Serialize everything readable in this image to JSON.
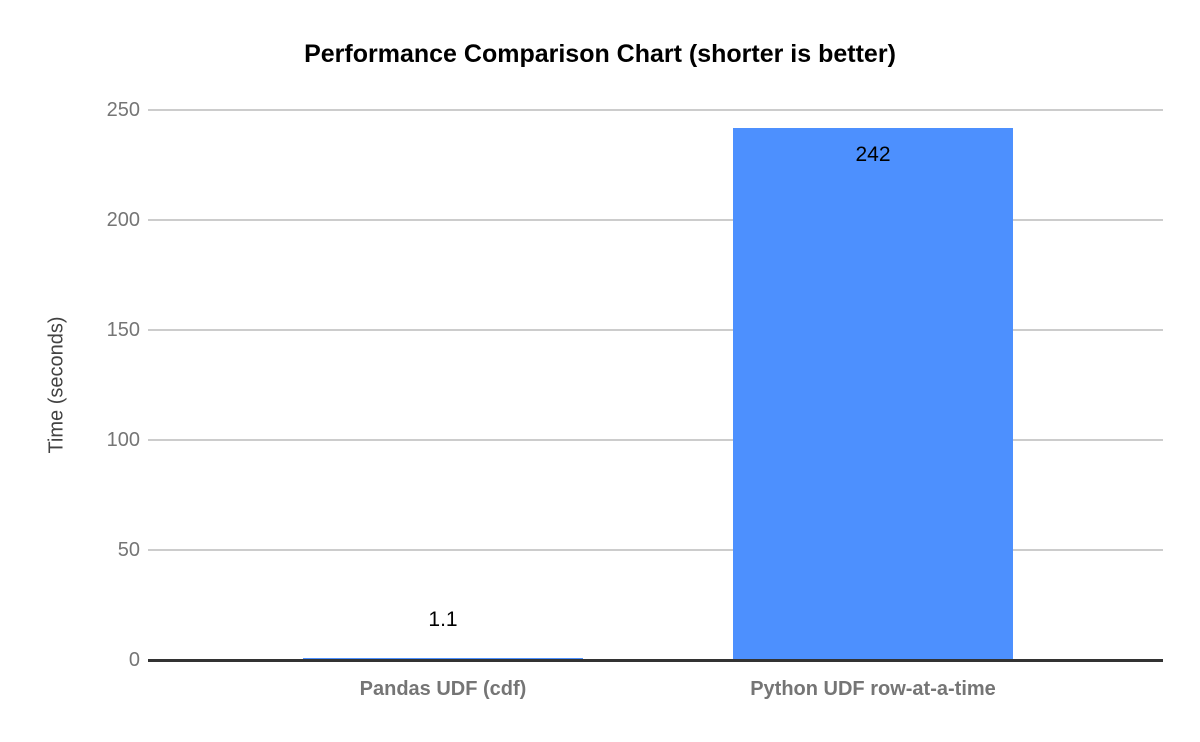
{
  "chart_data": {
    "type": "bar",
    "title": "Performance Comparison Chart (shorter is better)",
    "categories": [
      "Pandas UDF (cdf)",
      "Python UDF row-at-a-time"
    ],
    "values": [
      1.1,
      242
    ],
    "value_labels": [
      "1.1",
      "242"
    ],
    "xlabel": "",
    "ylabel": "Time (seconds)",
    "ylim": [
      0,
      250
    ],
    "yticks": [
      0,
      50,
      100,
      150,
      200,
      250
    ],
    "grid": true,
    "legend": "none",
    "colors": {
      "bar": "#4d90fe",
      "gridline": "#cccccc",
      "baseline": "#333333",
      "tick_text": "#757575",
      "category_text": "#757575",
      "axis_title_text": "#424242",
      "title_text": "#000000",
      "background": "#ffffff"
    }
  }
}
